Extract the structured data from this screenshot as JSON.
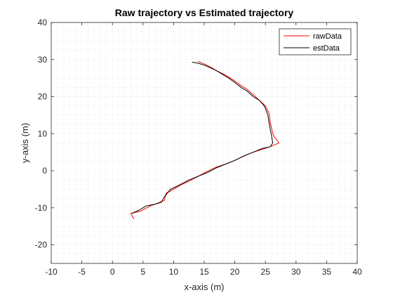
{
  "chart_data": {
    "type": "line",
    "title": "Raw trajectory vs Estimated trajectory",
    "xlabel": "x-axis (m)",
    "ylabel": "y-axis (m)",
    "xlim": [
      -10,
      40
    ],
    "ylim": [
      -25,
      40
    ],
    "xticks": [
      -10,
      -5,
      0,
      5,
      10,
      15,
      20,
      25,
      30,
      35,
      40
    ],
    "yticks": [
      -20,
      -10,
      0,
      10,
      20,
      30,
      40
    ],
    "grid": "minor dotted",
    "legend_position": "top-right",
    "series": [
      {
        "name": "rawData",
        "color": "#ff0000",
        "x": [
          3.5,
          3.0,
          4.5,
          6.2,
          7.0,
          8.5,
          8.8,
          9.5,
          11.0,
          12.5,
          14.0,
          15.5,
          17.0,
          18.5,
          20.0,
          21.5,
          23.0,
          24.5,
          25.8,
          26.8,
          27.2,
          27.0,
          26.8,
          26.5,
          26.2,
          26.0,
          25.8,
          25.6,
          25.0,
          24.0,
          23.0,
          22.0,
          21.0,
          20.0,
          19.0,
          18.0,
          17.0,
          16.0,
          15.0,
          14.0
        ],
        "y": [
          -13.0,
          -11.5,
          -11.0,
          -9.5,
          -9.0,
          -8.0,
          -6.0,
          -5.5,
          -4.0,
          -2.8,
          -1.5,
          -0.2,
          1.0,
          1.8,
          2.8,
          4.0,
          5.0,
          5.8,
          6.5,
          7.2,
          7.5,
          8.0,
          8.5,
          9.0,
          10.0,
          11.5,
          13.0,
          15.5,
          17.5,
          19.0,
          20.5,
          22.0,
          23.0,
          24.2,
          25.3,
          26.2,
          27.0,
          28.0,
          28.8,
          29.5
        ]
      },
      {
        "name": "estData",
        "color": "#000000",
        "x": [
          3.2,
          4.5,
          5.5,
          7.0,
          8.0,
          8.5,
          9.5,
          11.0,
          12.5,
          14.0,
          15.5,
          17.0,
          18.5,
          20.0,
          21.5,
          23.0,
          24.5,
          25.8,
          26.2,
          26.0,
          25.8,
          25.6,
          25.4,
          25.2,
          24.8,
          24.0,
          23.0,
          22.0,
          21.0,
          20.0,
          19.0,
          18.0,
          17.0,
          16.0,
          15.0,
          14.0,
          13.0
        ],
        "y": [
          -11.5,
          -10.5,
          -9.5,
          -9.0,
          -8.5,
          -7.0,
          -5.0,
          -3.8,
          -2.5,
          -1.5,
          -0.5,
          0.8,
          1.8,
          2.8,
          4.0,
          5.0,
          6.0,
          6.5,
          7.5,
          9.5,
          11.0,
          13.0,
          15.0,
          16.0,
          17.5,
          19.0,
          20.0,
          21.5,
          22.5,
          23.8,
          25.0,
          26.0,
          27.0,
          27.8,
          28.5,
          29.0,
          29.3
        ]
      }
    ]
  }
}
